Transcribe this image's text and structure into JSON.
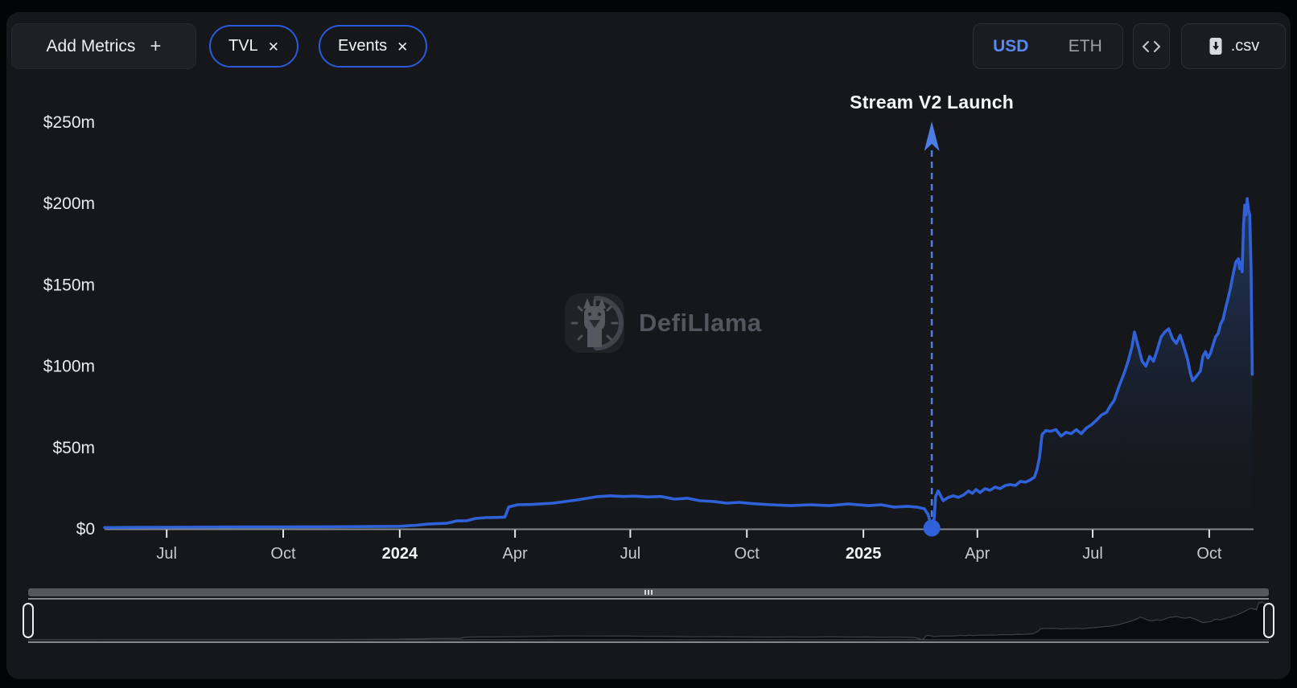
{
  "colors": {
    "accent_blue": "#2f62d8",
    "chip_border_blue": "#2b5ada",
    "usd_selected_blue": "#5b87f2",
    "panel_bg": "#15171b",
    "page_bg": "#030405",
    "axis_line": "#84888d"
  },
  "toolbar": {
    "add_metrics_label": "Add Metrics",
    "add_metrics_plus": "+",
    "metric_chips": [
      {
        "label": "TVL",
        "close": "✕"
      },
      {
        "label": "Events",
        "close": "✕"
      }
    ],
    "currency_toggle": {
      "options": [
        "USD",
        "ETH"
      ],
      "selected": "USD"
    },
    "csv_button_label": ".csv"
  },
  "watermark": {
    "text": "DefiLlama"
  },
  "chart_data": {
    "type": "area",
    "title": "",
    "xlabel": "",
    "ylabel": "",
    "legend": [],
    "grid": false,
    "domain": {
      "start": "2023-05-13",
      "end": "2025-11-05"
    },
    "y_axis": {
      "min": 0,
      "max": 250,
      "unit": "$m",
      "ticks": [
        {
          "label": "$0",
          "value": 0
        },
        {
          "label": "$50m",
          "value": 50
        },
        {
          "label": "$100m",
          "value": 100
        },
        {
          "label": "$150m",
          "value": 150
        },
        {
          "label": "$200m",
          "value": 200
        },
        {
          "label": "$250m",
          "value": 250
        }
      ]
    },
    "x_axis": {
      "ticks": [
        {
          "label": "Jul",
          "date": "2023-07-01",
          "bold": false
        },
        {
          "label": "Oct",
          "date": "2023-10-01",
          "bold": false
        },
        {
          "label": "2024",
          "date": "2024-01-01",
          "bold": true
        },
        {
          "label": "Apr",
          "date": "2024-04-01",
          "bold": false
        },
        {
          "label": "Jul",
          "date": "2024-07-01",
          "bold": false
        },
        {
          "label": "Oct",
          "date": "2024-10-01",
          "bold": false
        },
        {
          "label": "2025",
          "date": "2025-01-01",
          "bold": true
        },
        {
          "label": "Apr",
          "date": "2025-04-01",
          "bold": false
        },
        {
          "label": "Jul",
          "date": "2025-07-01",
          "bold": false
        },
        {
          "label": "Oct",
          "date": "2025-10-01",
          "bold": false
        }
      ]
    },
    "events": [
      {
        "label": "Stream V2 Launch",
        "date": "2025-02-24",
        "value": 0
      }
    ],
    "series": [
      {
        "name": "TVL (USD millions)",
        "color": "#2f62d8",
        "points": [
          [
            "2023-05-13",
            0.8
          ],
          [
            "2023-06-01",
            0.9
          ],
          [
            "2023-07-01",
            1.0
          ],
          [
            "2023-08-01",
            1.1
          ],
          [
            "2023-09-01",
            1.2
          ],
          [
            "2023-10-01",
            1.2
          ],
          [
            "2023-11-01",
            1.3
          ],
          [
            "2023-12-01",
            1.4
          ],
          [
            "2024-01-01",
            1.6
          ],
          [
            "2024-01-14",
            2.2
          ],
          [
            "2024-01-24",
            3.0
          ],
          [
            "2024-02-07",
            3.4
          ],
          [
            "2024-02-15",
            4.9
          ],
          [
            "2024-02-23",
            5.0
          ],
          [
            "2024-03-01",
            6.4
          ],
          [
            "2024-03-09",
            6.9
          ],
          [
            "2024-03-17",
            7.0
          ],
          [
            "2024-03-24",
            7.2
          ],
          [
            "2024-03-27",
            13.4
          ],
          [
            "2024-04-03",
            14.8
          ],
          [
            "2024-04-15",
            15.0
          ],
          [
            "2024-05-01",
            15.8
          ],
          [
            "2024-05-20",
            17.8
          ],
          [
            "2024-06-05",
            19.8
          ],
          [
            "2024-06-15",
            20.3
          ],
          [
            "2024-06-25",
            19.9
          ],
          [
            "2024-07-05",
            20.1
          ],
          [
            "2024-07-15",
            19.6
          ],
          [
            "2024-07-25",
            19.9
          ],
          [
            "2024-08-05",
            18.3
          ],
          [
            "2024-08-15",
            18.8
          ],
          [
            "2024-08-25",
            17.3
          ],
          [
            "2024-09-05",
            16.8
          ],
          [
            "2024-09-15",
            15.8
          ],
          [
            "2024-09-25",
            16.3
          ],
          [
            "2024-10-05",
            15.5
          ],
          [
            "2024-10-20",
            14.8
          ],
          [
            "2024-11-05",
            14.3
          ],
          [
            "2024-11-20",
            14.8
          ],
          [
            "2024-12-05",
            14.3
          ],
          [
            "2024-12-20",
            15.3
          ],
          [
            "2025-01-05",
            14.3
          ],
          [
            "2025-01-15",
            14.8
          ],
          [
            "2025-01-25",
            13.4
          ],
          [
            "2025-02-05",
            13.9
          ],
          [
            "2025-02-12",
            13.4
          ],
          [
            "2025-02-18",
            12.4
          ],
          [
            "2025-02-21",
            9.0
          ],
          [
            "2025-02-23",
            3.4
          ],
          [
            "2025-02-24",
            0.5
          ],
          [
            "2025-02-26",
            6.9
          ],
          [
            "2025-02-27",
            19.8
          ],
          [
            "2025-03-01",
            23.3
          ],
          [
            "2025-03-05",
            17.3
          ],
          [
            "2025-03-09",
            19.3
          ],
          [
            "2025-03-13",
            20.3
          ],
          [
            "2025-03-17",
            19.3
          ],
          [
            "2025-03-21",
            20.8
          ],
          [
            "2025-03-25",
            23.3
          ],
          [
            "2025-03-28",
            21.8
          ],
          [
            "2025-03-31",
            24.2
          ],
          [
            "2025-04-03",
            22.3
          ],
          [
            "2025-04-07",
            24.7
          ],
          [
            "2025-04-11",
            23.7
          ],
          [
            "2025-04-15",
            25.7
          ],
          [
            "2025-04-19",
            24.7
          ],
          [
            "2025-04-23",
            26.7
          ],
          [
            "2025-04-27",
            27.2
          ],
          [
            "2025-05-01",
            26.7
          ],
          [
            "2025-05-05",
            29.2
          ],
          [
            "2025-05-09",
            28.7
          ],
          [
            "2025-05-13",
            30.2
          ],
          [
            "2025-05-16",
            31.7
          ],
          [
            "2025-05-18",
            36.4
          ],
          [
            "2025-05-20",
            43.7
          ],
          [
            "2025-05-22",
            58.0
          ],
          [
            "2025-05-25",
            60.4
          ],
          [
            "2025-05-29",
            60.0
          ],
          [
            "2025-06-02",
            61.0
          ],
          [
            "2025-06-06",
            57.0
          ],
          [
            "2025-06-10",
            59.4
          ],
          [
            "2025-06-14",
            58.5
          ],
          [
            "2025-06-18",
            61.0
          ],
          [
            "2025-06-22",
            58.5
          ],
          [
            "2025-06-26",
            62.0
          ],
          [
            "2025-06-30",
            64.0
          ],
          [
            "2025-07-04",
            66.8
          ],
          [
            "2025-07-08",
            70.0
          ],
          [
            "2025-07-12",
            71.7
          ],
          [
            "2025-07-15",
            75.7
          ],
          [
            "2025-07-18",
            79.0
          ],
          [
            "2025-07-22",
            88.0
          ],
          [
            "2025-07-26",
            96.0
          ],
          [
            "2025-07-29",
            103.0
          ],
          [
            "2025-08-01",
            112.0
          ],
          [
            "2025-08-03",
            121.0
          ],
          [
            "2025-08-06",
            112.0
          ],
          [
            "2025-08-09",
            103.0
          ],
          [
            "2025-08-12",
            100.0
          ],
          [
            "2025-08-15",
            106.0
          ],
          [
            "2025-08-18",
            103.0
          ],
          [
            "2025-08-21",
            110.0
          ],
          [
            "2025-08-24",
            118.0
          ],
          [
            "2025-08-27",
            121.0
          ],
          [
            "2025-08-30",
            123.0
          ],
          [
            "2025-09-02",
            117.0
          ],
          [
            "2025-09-05",
            114.0
          ],
          [
            "2025-09-08",
            119.0
          ],
          [
            "2025-09-11",
            112.0
          ],
          [
            "2025-09-14",
            104.0
          ],
          [
            "2025-09-16",
            96.0
          ],
          [
            "2025-09-18",
            91.0
          ],
          [
            "2025-09-21",
            94.0
          ],
          [
            "2025-09-24",
            97.0
          ],
          [
            "2025-09-26",
            106.0
          ],
          [
            "2025-09-28",
            109.0
          ],
          [
            "2025-09-30",
            105.0
          ],
          [
            "2025-10-02",
            108.0
          ],
          [
            "2025-10-04",
            113.0
          ],
          [
            "2025-10-06",
            118.0
          ],
          [
            "2025-10-08",
            120.0
          ],
          [
            "2025-10-10",
            126.0
          ],
          [
            "2025-10-12",
            129.0
          ],
          [
            "2025-10-14",
            136.0
          ],
          [
            "2025-10-16",
            142.0
          ],
          [
            "2025-10-18",
            149.0
          ],
          [
            "2025-10-20",
            157.0
          ],
          [
            "2025-10-22",
            164.0
          ],
          [
            "2025-10-24",
            166.0
          ],
          [
            "2025-10-25",
            160.0
          ],
          [
            "2025-10-26",
            164.0
          ],
          [
            "2025-10-27",
            158.0
          ],
          [
            "2025-10-28",
            185.0
          ],
          [
            "2025-10-29",
            199.0
          ],
          [
            "2025-10-30",
            193.0
          ],
          [
            "2025-10-31",
            203.0
          ],
          [
            "2025-11-01",
            196.0
          ],
          [
            "2025-11-02",
            193.0
          ],
          [
            "2025-11-03",
            160.0
          ],
          [
            "2025-11-04",
            95.0
          ]
        ]
      }
    ]
  }
}
